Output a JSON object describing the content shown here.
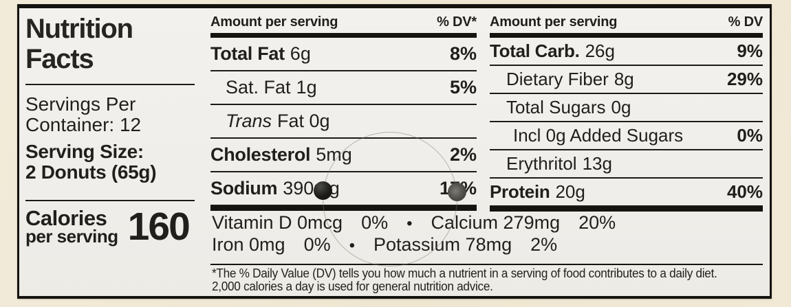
{
  "title": "Nutrition\nFacts",
  "servings_per_container": "Servings Per\nContainer: 12",
  "serving_size": "Serving Size:\n2 Donuts (65g)",
  "calories": {
    "line1": "Calories",
    "line2": "per serving",
    "value": "160"
  },
  "mid_header": {
    "label": "Amount per serving",
    "dv": "% DV*"
  },
  "right_header": {
    "label": "Amount per serving",
    "dv": "% DV"
  },
  "mid_rows": [
    {
      "name": "Total Fat",
      "value": "6g",
      "dv": "8%"
    },
    {
      "name": "Sat. Fat",
      "value": "1g",
      "dv": "5%"
    },
    {
      "name": "Trans",
      "value": "Fat 0g",
      "dv": ""
    },
    {
      "name": "Cholesterol",
      "value": "5mg",
      "dv": "2%"
    },
    {
      "name": "Sodium",
      "value": "390mg",
      "dv": "17%"
    }
  ],
  "right_rows": [
    {
      "name": "Total Carb.",
      "value": "26g",
      "dv": "9%"
    },
    {
      "name": "Dietary Fiber",
      "value": "8g",
      "dv": "29%"
    },
    {
      "name": "Total Sugars",
      "value": "0g",
      "dv": ""
    },
    {
      "name": "Incl 0g Added Sugars",
      "value": "",
      "dv": "0%"
    },
    {
      "name": "Erythritol",
      "value": "13g",
      "dv": ""
    },
    {
      "name": "Protein",
      "value": "20g",
      "dv": "40%"
    }
  ],
  "micronutrients": {
    "row1": {
      "item1": "Vitamin D 0mcg",
      "dv1": "0%",
      "bullet": "•",
      "item2": "Calcium 279mg",
      "dv2": "20%"
    },
    "row2": {
      "item1": "Iron 0mg",
      "dv1": "0%",
      "bullet": "•",
      "item2": "Potassium 78mg",
      "dv2": "2%"
    }
  },
  "footnote": "*The % Daily Value (DV) tells you how much a nutrient in a serving of food contributes to a daily diet.\n2,000 calories a day is used for general nutrition advice.",
  "colors": {
    "page_bg": "#efe7d3",
    "label_bg": "#f1efeb",
    "text": "#201f1c",
    "rule": "#15140f"
  }
}
